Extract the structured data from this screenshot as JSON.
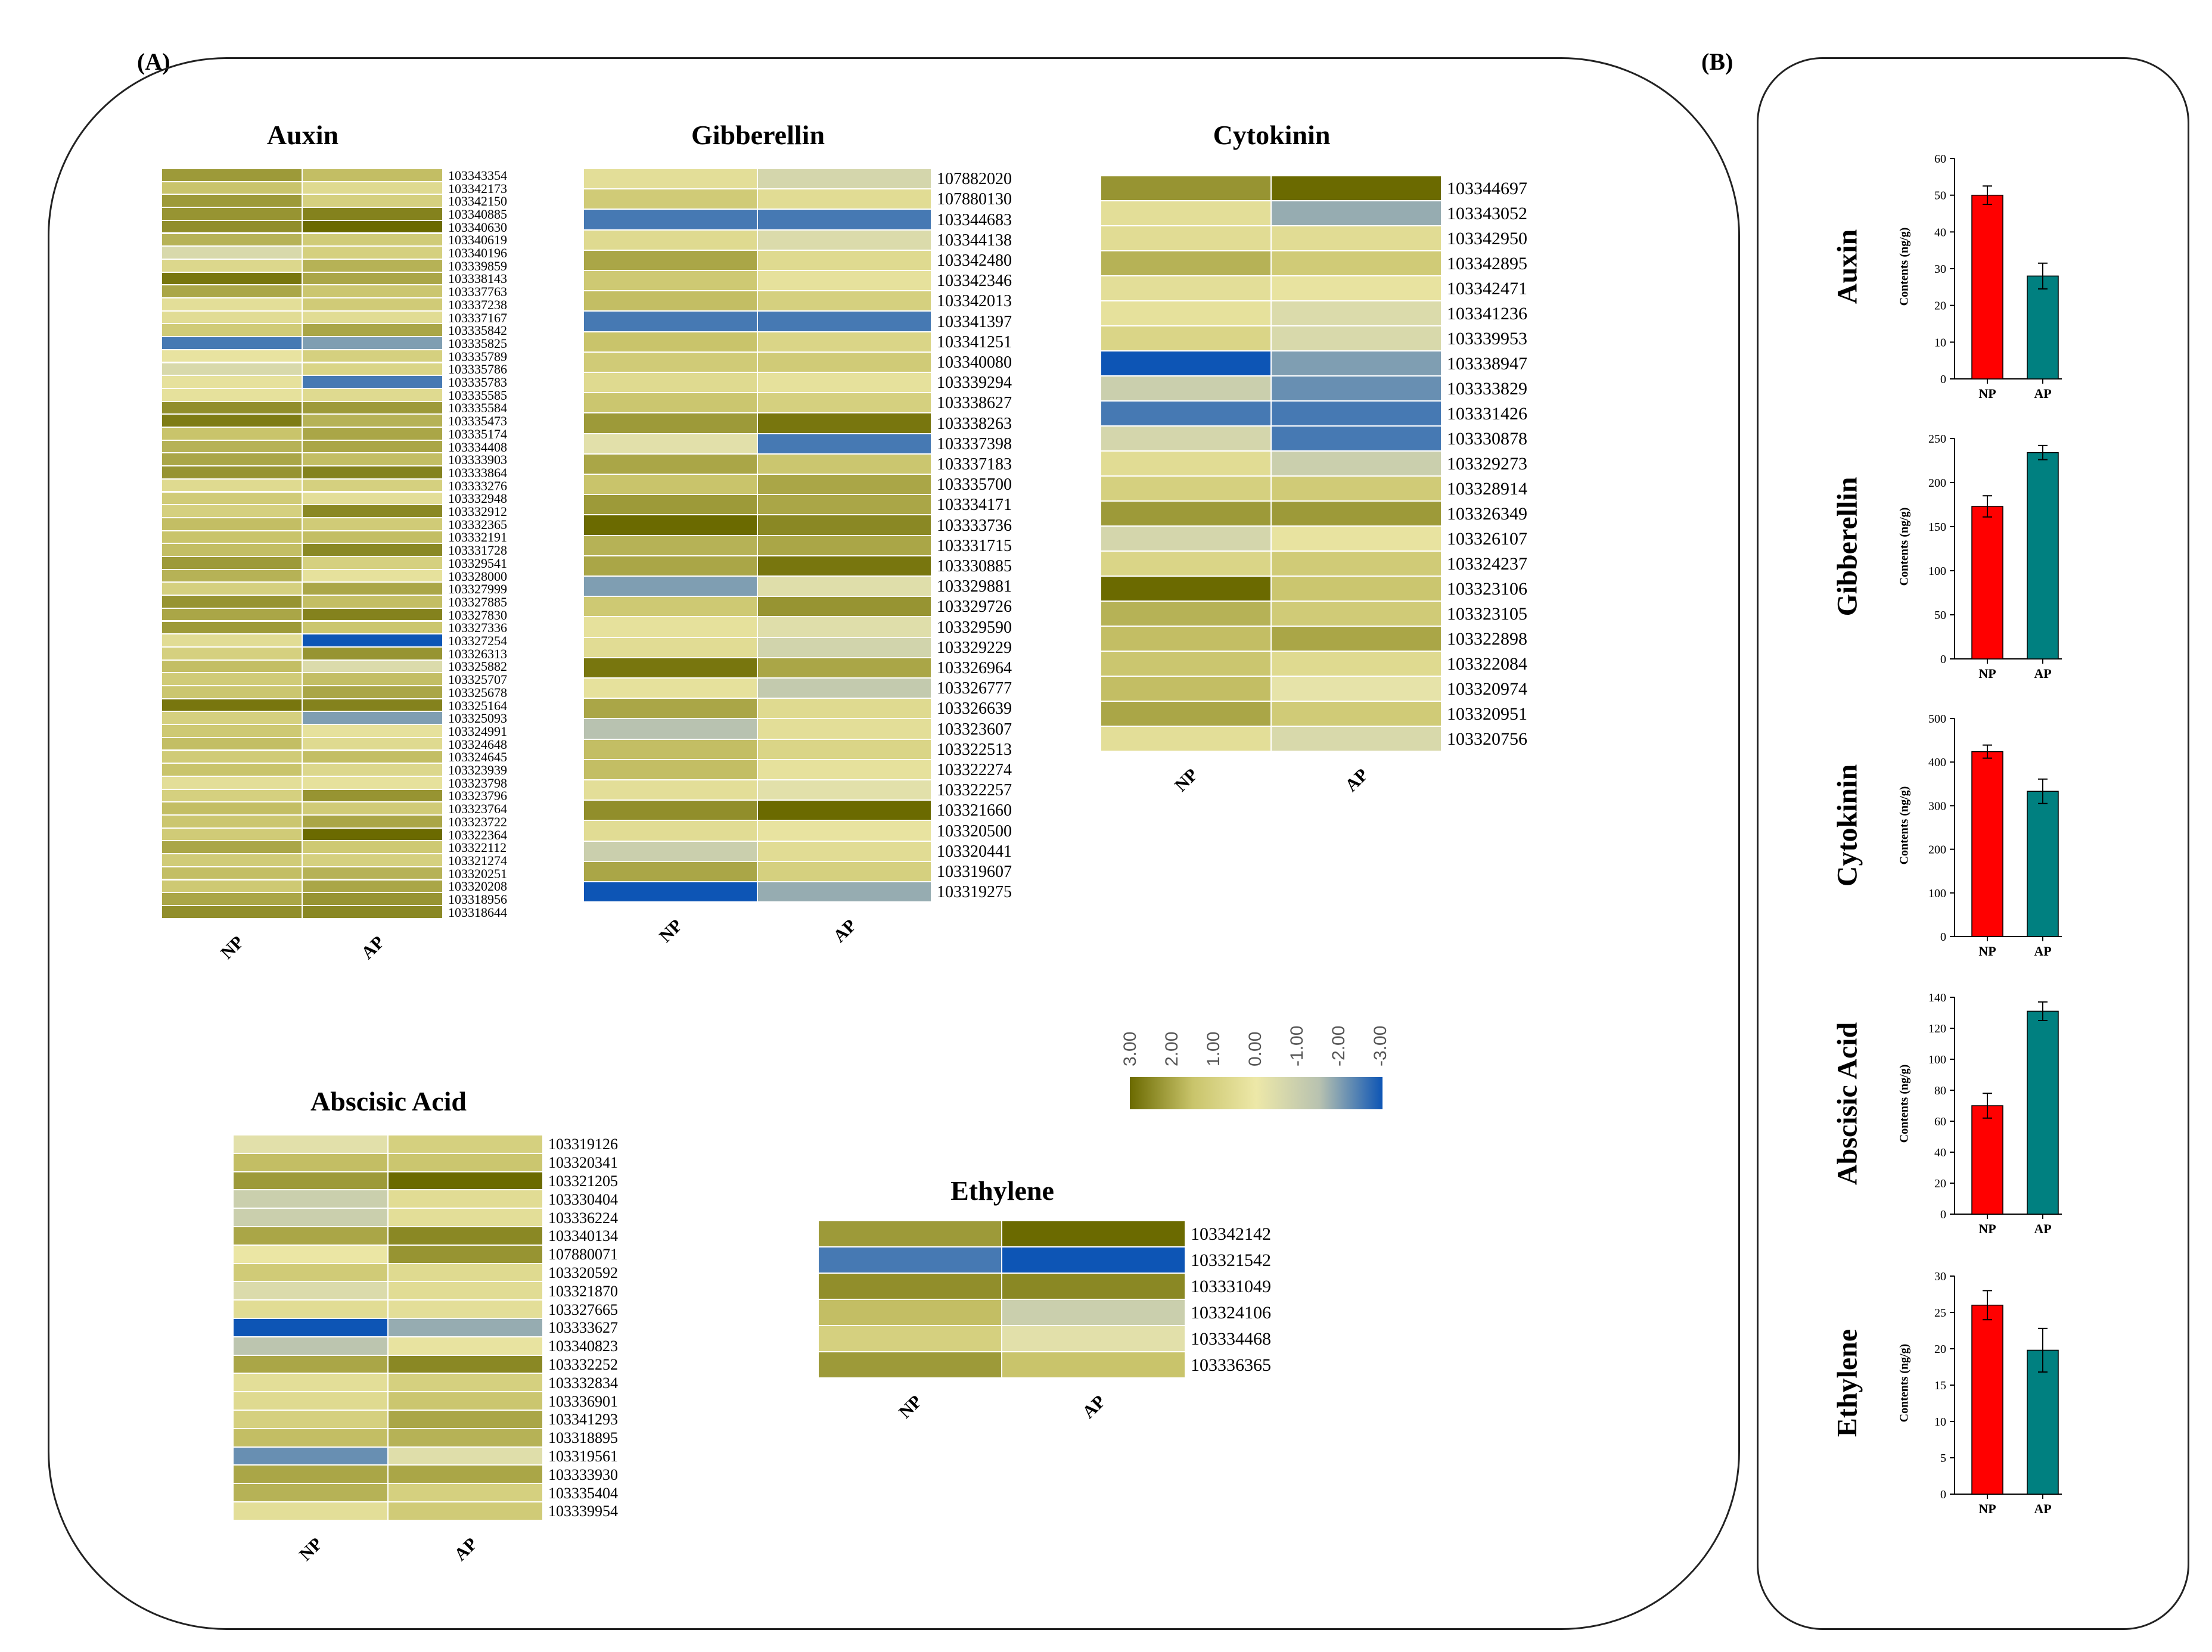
{
  "panel_labels": {
    "a": "(A)",
    "b": "(B)"
  },
  "legend": {
    "ticks": [
      "3.00",
      "2.00",
      "1.00",
      "0.00",
      "-1.00",
      "-2.00",
      "-3.00"
    ],
    "colors": [
      "#6b6a00",
      "#c9c46b",
      "#ede8a8",
      "#b8c2b0",
      "#0d55b5"
    ]
  },
  "chart_data": [
    {
      "type": "heatmap",
      "title": "Auxin",
      "columns": [
        "NP",
        "AP"
      ],
      "rows": [
        "103343354",
        "103342173",
        "103342150",
        "103340885",
        "103340630",
        "103340619",
        "103340196",
        "103339859",
        "103338143",
        "103337763",
        "103337238",
        "103337167",
        "103335842",
        "103335825",
        "103335789",
        "103335786",
        "103335783",
        "103335585",
        "103335584",
        "103335473",
        "103335174",
        "103334408",
        "103333903",
        "103333864",
        "103333276",
        "103332948",
        "103332912",
        "103332365",
        "103332191",
        "103331728",
        "103329541",
        "103328000",
        "103327999",
        "103327885",
        "103327830",
        "103327336",
        "103327254",
        "103326313",
        "103325882",
        "103325707",
        "103325678",
        "103325164",
        "103325093",
        "103324991",
        "103324648",
        "103324645",
        "103323939",
        "103323798",
        "103323796",
        "103323764",
        "103323722",
        "103322364",
        "103322112",
        "103321274",
        "103320251",
        "103320208",
        "103318956",
        "103318644"
      ],
      "values": [
        [
          2.2,
          1.6
        ],
        [
          1.5,
          0.6
        ],
        [
          2.2,
          1.0
        ],
        [
          2.3,
          2.6
        ],
        [
          2.4,
          3.0
        ],
        [
          1.8,
          1.2
        ],
        [
          -0.6,
          1.0
        ],
        [
          0.7,
          1.8
        ],
        [
          2.8,
          2.0
        ],
        [
          2.0,
          1.4
        ],
        [
          0.4,
          1.2
        ],
        [
          0.5,
          0.5
        ],
        [
          1.2,
          2.0
        ],
        [
          -2.5,
          -2.0
        ],
        [
          0.2,
          1.0
        ],
        [
          -0.6,
          0.8
        ],
        [
          0.3,
          -2.5
        ],
        [
          0.3,
          0.6
        ],
        [
          2.4,
          2.2
        ],
        [
          2.7,
          1.8
        ],
        [
          1.5,
          2.0
        ],
        [
          1.8,
          2.0
        ],
        [
          2.0,
          1.6
        ],
        [
          2.3,
          2.6
        ],
        [
          0.6,
          1.0
        ],
        [
          1.2,
          0.4
        ],
        [
          1.0,
          2.5
        ],
        [
          1.6,
          1.2
        ],
        [
          1.5,
          1.6
        ],
        [
          1.6,
          2.5
        ],
        [
          2.2,
          1.0
        ],
        [
          1.8,
          0.3
        ],
        [
          1.0,
          2.0
        ],
        [
          2.3,
          1.6
        ],
        [
          2.0,
          2.6
        ],
        [
          2.2,
          1.4
        ],
        [
          0.5,
          -3.0
        ],
        [
          1.0,
          2.3
        ],
        [
          1.6,
          -0.5
        ],
        [
          1.2,
          1.6
        ],
        [
          1.4,
          2.0
        ],
        [
          2.8,
          2.6
        ],
        [
          1.0,
          -2.0
        ],
        [
          1.3,
          0.3
        ],
        [
          1.6,
          0.6
        ],
        [
          1.2,
          1.6
        ],
        [
          1.5,
          0.7
        ],
        [
          0.4,
          0.3
        ],
        [
          1.0,
          2.3
        ],
        [
          1.6,
          1.2
        ],
        [
          1.4,
          2.0
        ],
        [
          1.2,
          3.0
        ],
        [
          2.0,
          1.3
        ],
        [
          1.2,
          1.0
        ],
        [
          1.6,
          1.8
        ],
        [
          1.3,
          2.0
        ],
        [
          2.0,
          2.3
        ],
        [
          2.4,
          2.5
        ]
      ]
    },
    {
      "type": "heatmap",
      "title": "Gibberellin",
      "columns": [
        "NP",
        "AP"
      ],
      "rows": [
        "107882020",
        "107880130",
        "103344683",
        "103344138",
        "103342480",
        "103342346",
        "103342013",
        "103341397",
        "103341251",
        "103340080",
        "103339294",
        "103338627",
        "103338263",
        "103337398",
        "103337183",
        "103335700",
        "103334171",
        "103333736",
        "103331715",
        "103330885",
        "103329881",
        "103329726",
        "103329590",
        "103329229",
        "103326964",
        "103326777",
        "103326639",
        "103323607",
        "103322513",
        "103322274",
        "103322257",
        "103321660",
        "103320500",
        "103320441",
        "103319607",
        "103319275"
      ],
      "values": [
        [
          0.4,
          -0.7
        ],
        [
          1.2,
          0.5
        ],
        [
          -2.5,
          -2.5
        ],
        [
          0.6,
          -0.5
        ],
        [
          2.0,
          0.6
        ],
        [
          1.3,
          0.3
        ],
        [
          1.6,
          1.0
        ],
        [
          -2.5,
          -2.5
        ],
        [
          1.5,
          0.8
        ],
        [
          1.2,
          1.2
        ],
        [
          0.6,
          0.3
        ],
        [
          1.4,
          1.0
        ],
        [
          2.2,
          2.8
        ],
        [
          -0.3,
          -2.5
        ],
        [
          2.0,
          1.4
        ],
        [
          1.5,
          2.0
        ],
        [
          2.2,
          2.0
        ],
        [
          3.0,
          2.5
        ],
        [
          1.8,
          2.0
        ],
        [
          2.0,
          2.8
        ],
        [
          -2.0,
          -0.4
        ],
        [
          1.3,
          2.3
        ],
        [
          0.3,
          -0.4
        ],
        [
          0.5,
          -0.8
        ],
        [
          2.8,
          2.0
        ],
        [
          0.3,
          -1.2
        ],
        [
          2.0,
          0.6
        ],
        [
          -1.5,
          0.4
        ],
        [
          1.6,
          0.8
        ],
        [
          1.6,
          0.3
        ],
        [
          0.4,
          -0.3
        ],
        [
          2.4,
          3.0
        ],
        [
          0.5,
          0.2
        ],
        [
          -1.0,
          0.5
        ],
        [
          2.0,
          1.0
        ],
        [
          -3.0,
          -1.8
        ]
      ]
    },
    {
      "type": "heatmap",
      "title": "Cytokinin",
      "columns": [
        "NP",
        "AP"
      ],
      "rows": [
        "103344697",
        "103343052",
        "103342950",
        "103342895",
        "103342471",
        "103341236",
        "103339953",
        "103338947",
        "103333829",
        "103331426",
        "103330878",
        "103329273",
        "103328914",
        "103326349",
        "103326107",
        "103324237",
        "103323106",
        "103323105",
        "103322898",
        "103322084",
        "103320974",
        "103320951",
        "103320756"
      ],
      "values": [
        [
          2.3,
          3.0
        ],
        [
          0.4,
          -1.8
        ],
        [
          0.5,
          0.5
        ],
        [
          1.8,
          1.2
        ],
        [
          0.4,
          0.2
        ],
        [
          0.3,
          -0.5
        ],
        [
          0.8,
          -0.6
        ],
        [
          -3.0,
          -2.0
        ],
        [
          -1.0,
          -2.2
        ],
        [
          -2.5,
          -2.5
        ],
        [
          -0.7,
          -2.5
        ],
        [
          0.5,
          -1.0
        ],
        [
          1.0,
          1.2
        ],
        [
          2.2,
          2.2
        ],
        [
          -0.7,
          0.2
        ],
        [
          0.8,
          1.2
        ],
        [
          3.0,
          1.4
        ],
        [
          1.8,
          1.2
        ],
        [
          1.6,
          2.0
        ],
        [
          1.4,
          0.6
        ],
        [
          1.6,
          -0.2
        ],
        [
          2.0,
          1.2
        ],
        [
          0.4,
          -0.6
        ]
      ]
    },
    {
      "type": "heatmap",
      "title": "Abscisic Acid",
      "columns": [
        "NP",
        "AP"
      ],
      "rows": [
        "103319126",
        "103320341",
        "103321205",
        "103330404",
        "103336224",
        "103340134",
        "107880071",
        "103320592",
        "103321870",
        "103327665",
        "103333627",
        "103340823",
        "103332252",
        "103332834",
        "103336901",
        "103341293",
        "103318895",
        "103319561",
        "103333930",
        "103335404",
        "103339954"
      ],
      "values": [
        [
          -0.3,
          1.0
        ],
        [
          1.6,
          1.4
        ],
        [
          2.2,
          3.0
        ],
        [
          -1.0,
          0.5
        ],
        [
          -1.0,
          0.4
        ],
        [
          2.0,
          2.5
        ],
        [
          0.1,
          2.3
        ],
        [
          1.2,
          0.6
        ],
        [
          -0.5,
          0.5
        ],
        [
          0.5,
          0.4
        ],
        [
          -3.0,
          -1.8
        ],
        [
          -1.4,
          0.2
        ],
        [
          2.0,
          2.5
        ],
        [
          0.4,
          1.0
        ],
        [
          0.6,
          1.4
        ],
        [
          1.0,
          2.0
        ],
        [
          1.6,
          1.8
        ],
        [
          -2.2,
          -0.4
        ],
        [
          2.0,
          2.0
        ],
        [
          1.8,
          1.0
        ],
        [
          0.4,
          1.2
        ]
      ]
    },
    {
      "type": "heatmap",
      "title": "Ethylene",
      "columns": [
        "NP",
        "AP"
      ],
      "rows": [
        "103342142",
        "103321542",
        "103331049",
        "103324106",
        "103334468",
        "103336365"
      ],
      "values": [
        [
          2.2,
          3.0
        ],
        [
          -2.5,
          -3.0
        ],
        [
          2.4,
          2.5
        ],
        [
          1.6,
          -1.0
        ],
        [
          1.0,
          -0.3
        ],
        [
          2.2,
          1.5
        ]
      ]
    },
    {
      "type": "bar",
      "title": "Auxin",
      "categories": [
        "NP",
        "AP"
      ],
      "values": [
        50,
        28
      ],
      "errors": [
        2.5,
        3.5
      ],
      "ylabel": "Contents (ng/g)",
      "ylim": [
        0,
        60
      ],
      "yticks": [
        0,
        10,
        20,
        30,
        40,
        50,
        60
      ],
      "colors": [
        "#ff0000",
        "#008080"
      ]
    },
    {
      "type": "bar",
      "title": "Gibberellin",
      "categories": [
        "NP",
        "AP"
      ],
      "values": [
        173,
        234
      ],
      "errors": [
        12,
        8
      ],
      "ylabel": "Contents (ng/g)",
      "ylim": [
        0,
        250
      ],
      "yticks": [
        0,
        50,
        100,
        150,
        200,
        250
      ],
      "colors": [
        "#ff0000",
        "#008080"
      ]
    },
    {
      "type": "bar",
      "title": "Cytokinin",
      "categories": [
        "NP",
        "AP"
      ],
      "values": [
        424,
        333
      ],
      "errors": [
        15,
        28
      ],
      "ylabel": "Contents (ng/g)",
      "ylim": [
        0,
        500
      ],
      "yticks": [
        0,
        100,
        200,
        300,
        400,
        500
      ],
      "colors": [
        "#ff0000",
        "#008080"
      ]
    },
    {
      "type": "bar",
      "title": "Abscisic Acid",
      "categories": [
        "NP",
        "AP"
      ],
      "values": [
        70,
        131
      ],
      "errors": [
        8,
        6
      ],
      "ylabel": "Contents (ng/g)",
      "ylim": [
        0,
        140
      ],
      "yticks": [
        0,
        20,
        40,
        60,
        80,
        100,
        120,
        140
      ],
      "colors": [
        "#ff0000",
        "#008080"
      ]
    },
    {
      "type": "bar",
      "title": "Ethylene",
      "categories": [
        "NP",
        "AP"
      ],
      "values": [
        26,
        19.8
      ],
      "errors": [
        2,
        3
      ],
      "ylabel": "Contents (ng/g)",
      "ylim": [
        0,
        30
      ],
      "yticks": [
        0,
        5,
        10,
        15,
        20,
        25,
        30
      ],
      "colors": [
        "#ff0000",
        "#008080"
      ]
    }
  ]
}
